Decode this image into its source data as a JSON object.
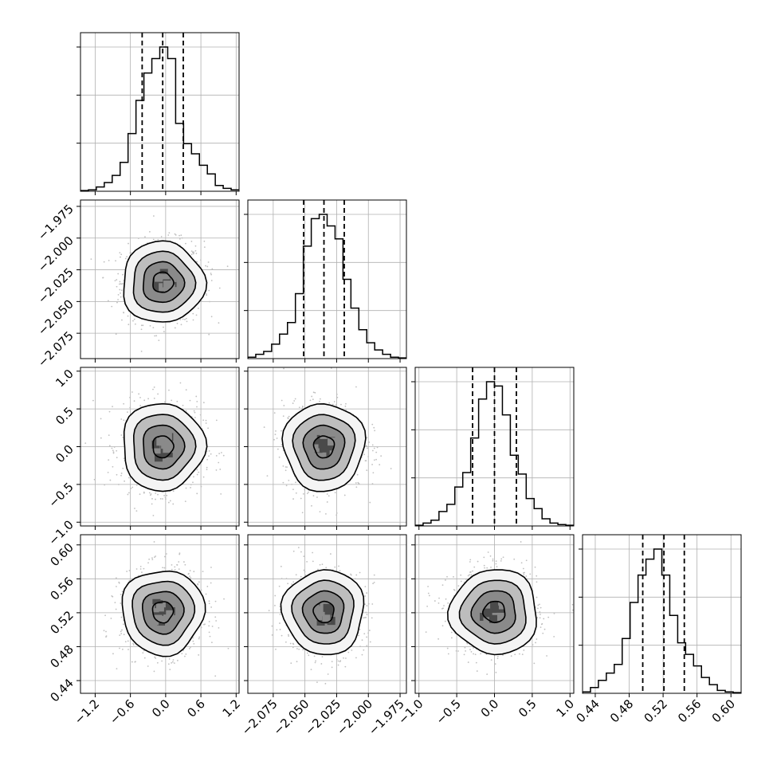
{
  "chart_data": {
    "type": "corner",
    "parameters": [
      {
        "index": 0,
        "range": [
          -1.45,
          1.25
        ],
        "ticks": [
          -1.2,
          -0.6,
          0.0,
          0.6,
          1.2
        ],
        "tick_labels": [
          "−1.2",
          "−0.6",
          "0.0",
          "0.6",
          "1.2"
        ],
        "mean": -0.05,
        "sd": 0.35,
        "quantiles": [
          -0.4,
          -0.05,
          0.3
        ]
      },
      {
        "index": 1,
        "range": [
          -2.095,
          -1.97
        ],
        "ticks": [
          -2.075,
          -2.05,
          -2.025,
          -2.0,
          -1.975
        ],
        "tick_labels": [
          "−2.075",
          "−2.050",
          "−2.025",
          "−2.000",
          "−1.975"
        ],
        "mean": -2.035,
        "sd": 0.016,
        "quantiles": [
          -2.051,
          -2.035,
          -2.019
        ]
      },
      {
        "index": 2,
        "range": [
          -1.05,
          1.05
        ],
        "ticks": [
          -1.0,
          -0.5,
          0.0,
          0.5,
          1.0
        ],
        "tick_labels": [
          "−1.0",
          "−0.5",
          "0.0",
          "0.5",
          "1.0"
        ],
        "mean": 0.0,
        "sd": 0.29,
        "quantiles": [
          -0.29,
          0.0,
          0.29
        ]
      },
      {
        "index": 3,
        "range": [
          0.425,
          0.612
        ],
        "ticks": [
          0.44,
          0.48,
          0.52,
          0.56,
          0.6
        ],
        "tick_labels": [
          "0.44",
          "0.48",
          "0.52",
          "0.56",
          "0.60"
        ],
        "mean": 0.521,
        "sd": 0.025,
        "quantiles": [
          0.496,
          0.521,
          0.545
        ]
      }
    ],
    "histograms": [
      {
        "param": 0,
        "bins": 20,
        "counts": [
          0.5,
          1,
          3,
          6,
          11,
          20,
          40,
          63,
          82,
          92,
          100,
          92,
          47,
          33,
          26,
          18,
          12,
          4,
          2,
          1
        ]
      },
      {
        "param": 1,
        "bins": 20,
        "counts": [
          1,
          3,
          5,
          10,
          17,
          25,
          45,
          78,
          97,
          100,
          92,
          83,
          55,
          35,
          20,
          11,
          6,
          3,
          1,
          0.5
        ]
      },
      {
        "param": 2,
        "bins": 20,
        "counts": [
          0.5,
          2,
          4,
          10,
          15,
          27,
          37,
          61,
          88,
          100,
          97,
          77,
          49,
          36,
          19,
          12,
          5,
          2,
          1,
          0.5
        ]
      },
      {
        "param": 3,
        "bins": 20,
        "counts": [
          1,
          4,
          9,
          14,
          20,
          38,
          63,
          82,
          93,
          100,
          82,
          54,
          35,
          27,
          19,
          11,
          6,
          2,
          1,
          0.5
        ]
      }
    ],
    "contour_levels": [
      0.118,
      0.393,
      0.675,
      0.865
    ],
    "grid": true
  }
}
